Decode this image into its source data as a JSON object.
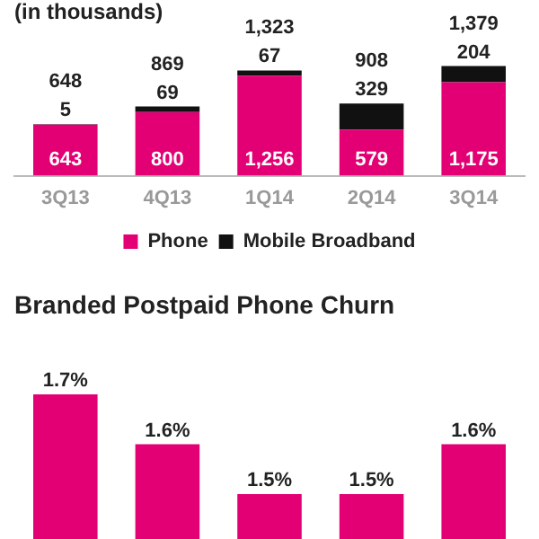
{
  "chart_data": [
    {
      "type": "bar",
      "title": "(in thousands)",
      "categories": [
        "3Q13",
        "4Q13",
        "1Q14",
        "2Q14",
        "3Q14"
      ],
      "stacked": true,
      "series": [
        {
          "name": "Phone",
          "color": "#e20074",
          "values": [
            643,
            800,
            1256,
            579,
            1175
          ],
          "value_labels": [
            "643",
            "800",
            "1,256",
            "579",
            "1,175"
          ]
        },
        {
          "name": "Mobile Broadband",
          "color": "#111111",
          "values": [
            5,
            69,
            67,
            329,
            204
          ],
          "value_labels": [
            "5",
            "69",
            "67",
            "329",
            "204"
          ]
        }
      ],
      "totals": [
        "648",
        "869",
        "1,323",
        "908",
        "1,379"
      ],
      "tick_labels": "x",
      "legend": "bottom",
      "grid": false
    },
    {
      "type": "bar",
      "title": "Branded Postpaid Phone Churn",
      "categories": [
        null,
        null,
        null,
        null,
        null
      ],
      "series": [
        {
          "color": "#e20074",
          "values": [
            1.7,
            1.6,
            1.5,
            1.5,
            1.6
          ],
          "value_labels": [
            "1.7%",
            "1.6%",
            "1.5%",
            "1.5%",
            "1.6%"
          ]
        }
      ],
      "tick_labels": false,
      "grid": false
    }
  ]
}
